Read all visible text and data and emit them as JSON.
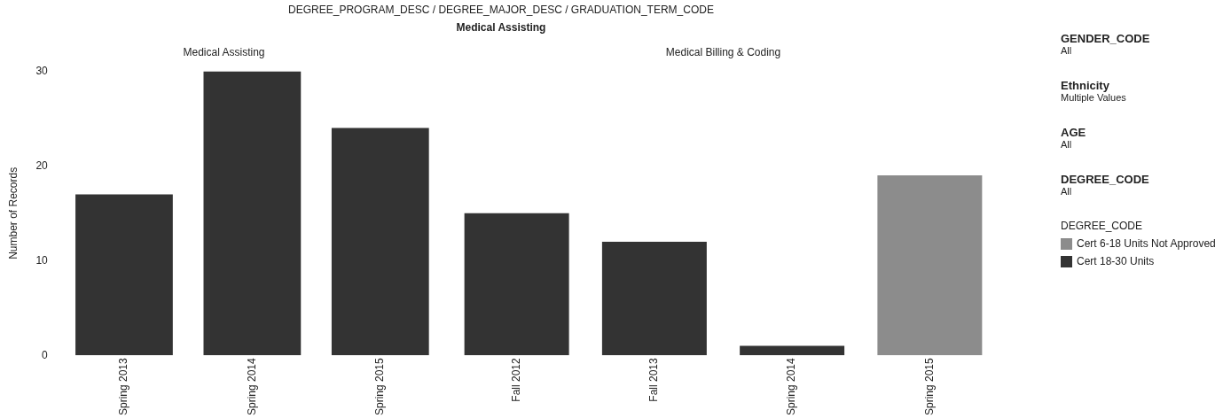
{
  "chart_data": [
    {
      "type": "other",
      "title": "DEGREE_PROGRAM_DESC / DEGREE_MAJOR_DESC / GRADUATION_TERM_CODE",
      "subtitle": "Medical Assisting"
    },
    {
      "type": "bar",
      "title": "Medical Assisting",
      "ylabel": "Number of Records",
      "categories": [
        "Spring 2013",
        "Spring 2014",
        "Spring 2015"
      ],
      "stacked": true,
      "series": [
        {
          "color": "#8c8c8c",
          "values": [
            null,
            null,
            null
          ]
        },
        {
          "color": "#333333",
          "values": [
            17,
            30,
            24
          ]
        }
      ],
      "ylim": [
        0,
        30
      ],
      "yticks": [
        0,
        10,
        20,
        30
      ],
      "grid": false,
      "legend": false
    },
    {
      "type": "bar",
      "title": "Medical Billing & Coding",
      "categories": [
        "Fall 2012",
        "Fall 2013",
        "Spring 2014",
        "Spring 2015"
      ],
      "stacked": true,
      "legend_title": "DEGREE_CODE",
      "series": [
        {
          "name": "Cert 6-18 Units Not Approved",
          "color": "#8c8c8c",
          "values": [
            null,
            null,
            null,
            19
          ]
        },
        {
          "name": "Cert 18-30 Units",
          "color": "#333333",
          "values": [
            15,
            12,
            1,
            null
          ]
        }
      ],
      "ylim": [
        0,
        30
      ],
      "yticks": [
        0,
        10,
        20,
        30
      ],
      "tick_labels": "x",
      "grid": false,
      "legend": "right"
    },
    {
      "type": "other",
      "annotations": [
        "GENDER_CODE",
        "All",
        "Ethnicity",
        "Multiple Values",
        "AGE",
        "All",
        "DEGREE_CODE",
        "All"
      ]
    }
  ]
}
